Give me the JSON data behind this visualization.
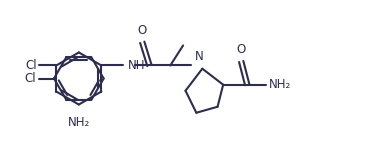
{
  "bg_color": "#ffffff",
  "line_color": "#2d2d4e",
  "line_width": 1.5,
  "font_size": 8.5,
  "figsize": [
    3.82,
    1.57
  ],
  "dpi": 100,
  "xlim": [
    0,
    9.5
  ],
  "ylim": [
    0,
    3.7
  ]
}
